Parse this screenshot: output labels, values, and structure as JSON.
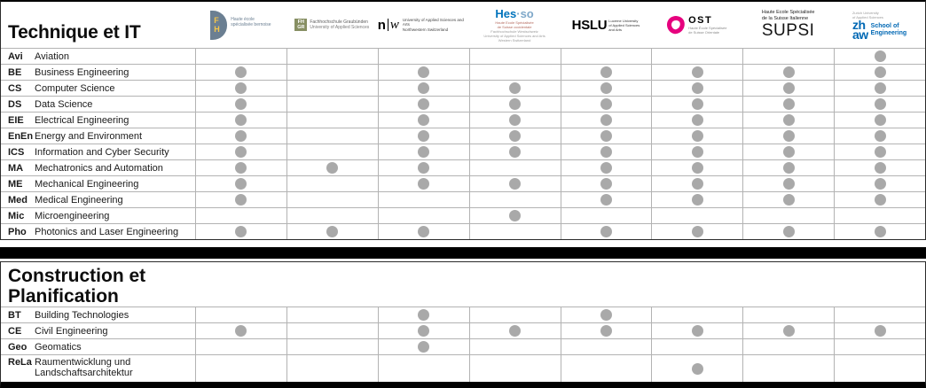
{
  "colors": {
    "dot": "#a9a9a9",
    "bfh_blue": "#6b7f92",
    "bfh_yellow": "#f5c64a",
    "fhgr_green": "#878f63",
    "hesso_blue": "#0073bc",
    "ost_magenta": "#e6007e",
    "zhaw_blue": "#0068b4"
  },
  "institution_order": [
    "BFH",
    "FHGR",
    "FHNW",
    "HES-SO",
    "HSLU",
    "OST",
    "SUPSI",
    "ZHAW"
  ],
  "logos": {
    "bfh": {
      "letter_f": "F",
      "letter_h": "H",
      "tagline_line1": "Haute école",
      "tagline_line2": "spécialisée bernoise"
    },
    "fhgr": {
      "block_line1": "FH",
      "block_line2": "GR",
      "line1": "Fachhochschule Graubünden",
      "line2": "University of Applied Sciences"
    },
    "fhnw": {
      "n": "n",
      "w": "w",
      "line1": "University of Applied Sciences and Arts",
      "line2": "Northwestern Switzerland"
    },
    "hesso": {
      "main": "Hes",
      "suffix": "·so",
      "line1": "Haute Ecole Spécialisée",
      "line2": "de Suisse occidentale",
      "line3": "Fachhochschule Westschweiz",
      "line4": "University of Applied Sciences and Arts",
      "line5": "Western Switzerland"
    },
    "hslu": {
      "main": "HSLU",
      "line1": "Lucerne University",
      "line2": "of Applied Sciences",
      "line3": "and Arts"
    },
    "ost": {
      "main": "OST",
      "line1": "Haute École Spécialisée",
      "line2": "de Suisse Orientale"
    },
    "supsi": {
      "line1": "Haute Ecole Spécialisée",
      "line2": "de la Suisse Italienne",
      "main": "SUPSI"
    },
    "zhaw": {
      "line1": "Zurich University",
      "line2": "of Applied Sciences",
      "zh": "zh",
      "aw": "aw",
      "school_line1": "School of",
      "school_line2": "Engineering"
    }
  },
  "sections": [
    {
      "title": "Technique et IT",
      "rows": [
        {
          "abbr": "Avi",
          "name": "Aviation",
          "dots": [
            0,
            0,
            0,
            0,
            0,
            0,
            0,
            1
          ]
        },
        {
          "abbr": "BE",
          "name": "Business Engineering",
          "dots": [
            1,
            0,
            1,
            0,
            1,
            1,
            1,
            1
          ]
        },
        {
          "abbr": "CS",
          "name": "Computer Science",
          "dots": [
            1,
            0,
            1,
            1,
            1,
            1,
            1,
            1
          ]
        },
        {
          "abbr": "DS",
          "name": "Data Science",
          "dots": [
            1,
            0,
            1,
            1,
            1,
            1,
            1,
            1
          ]
        },
        {
          "abbr": "EIE",
          "name": "Electrical Engineering",
          "dots": [
            1,
            0,
            1,
            1,
            1,
            1,
            1,
            1
          ]
        },
        {
          "abbr": "EnEn",
          "name": "Energy and Environment",
          "dots": [
            1,
            0,
            1,
            1,
            1,
            1,
            1,
            1
          ]
        },
        {
          "abbr": "ICS",
          "name": "Information and Cyber Security",
          "dots": [
            1,
            0,
            1,
            1,
            1,
            1,
            1,
            1
          ]
        },
        {
          "abbr": "MA",
          "name": "Mechatronics and Automation",
          "dots": [
            1,
            1,
            1,
            0,
            1,
            1,
            1,
            1
          ]
        },
        {
          "abbr": "ME",
          "name": "Mechanical Engineering",
          "dots": [
            1,
            0,
            1,
            1,
            1,
            1,
            1,
            1
          ]
        },
        {
          "abbr": "Med",
          "name": "Medical Engineering",
          "dots": [
            1,
            0,
            0,
            0,
            1,
            1,
            1,
            1
          ]
        },
        {
          "abbr": "Mic",
          "name": "Microengineering",
          "dots": [
            0,
            0,
            0,
            1,
            0,
            0,
            0,
            0
          ]
        },
        {
          "abbr": "Pho",
          "name": "Photonics and Laser Engineering",
          "dots": [
            1,
            1,
            1,
            0,
            1,
            1,
            1,
            1
          ]
        }
      ]
    },
    {
      "title_line1": "Construction et",
      "title_line2": "Planification",
      "rows": [
        {
          "abbr": "BT",
          "name": "Building Technologies",
          "dots": [
            0,
            0,
            1,
            0,
            1,
            0,
            0,
            0
          ]
        },
        {
          "abbr": "CE",
          "name": "Civil Engineering",
          "dots": [
            1,
            0,
            1,
            1,
            1,
            1,
            1,
            1
          ]
        },
        {
          "abbr": "Geo",
          "name": "Geomatics",
          "dots": [
            0,
            0,
            1,
            0,
            0,
            0,
            0,
            0
          ]
        },
        {
          "abbr": "ReLa",
          "name": "Raumentwicklung und",
          "name2": "Landschaftsarchitektur",
          "dots": [
            0,
            0,
            0,
            0,
            0,
            1,
            0,
            0
          ]
        }
      ]
    }
  ]
}
